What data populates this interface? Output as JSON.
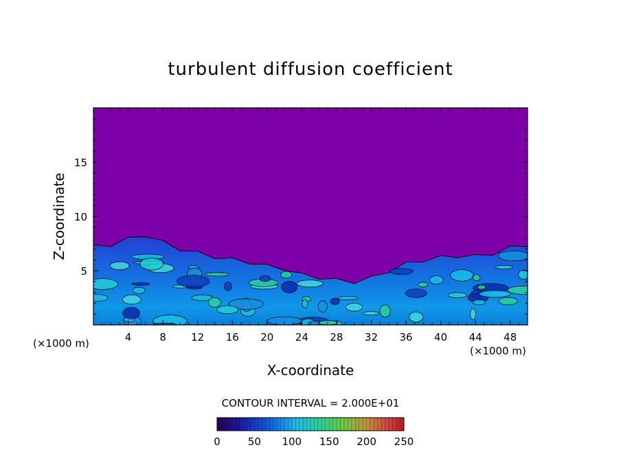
{
  "chart_data": {
    "type": "heatmap",
    "title": "turbulent diffusion coefficient",
    "xlabel": "X-coordinate",
    "ylabel": "Z-coordinate",
    "x_unit": "(×1000 m)",
    "x_unit_right": "(×1000 m)",
    "xlim": [
      0,
      50
    ],
    "ylim": [
      0,
      20
    ],
    "x_ticks": [
      4,
      8,
      12,
      16,
      20,
      24,
      28,
      32,
      36,
      40,
      44,
      48
    ],
    "y_ticks": [
      5,
      10,
      15
    ],
    "contour_interval_label": "CONTOUR INTERVAL = 2.000E+01",
    "colorbar": {
      "min": 0,
      "max": 250,
      "ticks": [
        0,
        50,
        100,
        150,
        200,
        250
      ]
    },
    "background_value": 0,
    "turbulent_layer_top_km": [
      [
        0,
        7.2
      ],
      [
        2,
        7.4
      ],
      [
        4,
        7.9
      ],
      [
        6,
        8.3
      ],
      [
        8,
        7.6
      ],
      [
        10,
        7.0
      ],
      [
        12,
        6.6
      ],
      [
        14,
        6.3
      ],
      [
        16,
        6.0
      ],
      [
        18,
        5.8
      ],
      [
        20,
        5.4
      ],
      [
        22,
        5.2
      ],
      [
        24,
        4.6
      ],
      [
        26,
        4.4
      ],
      [
        28,
        4.1
      ],
      [
        30,
        4.0
      ],
      [
        32,
        4.3
      ],
      [
        34,
        5.0
      ],
      [
        36,
        5.6
      ],
      [
        38,
        6.0
      ],
      [
        40,
        6.2
      ],
      [
        42,
        6.4
      ],
      [
        44,
        6.3
      ],
      [
        46,
        6.6
      ],
      [
        48,
        7.1
      ],
      [
        50,
        7.4
      ]
    ]
  }
}
